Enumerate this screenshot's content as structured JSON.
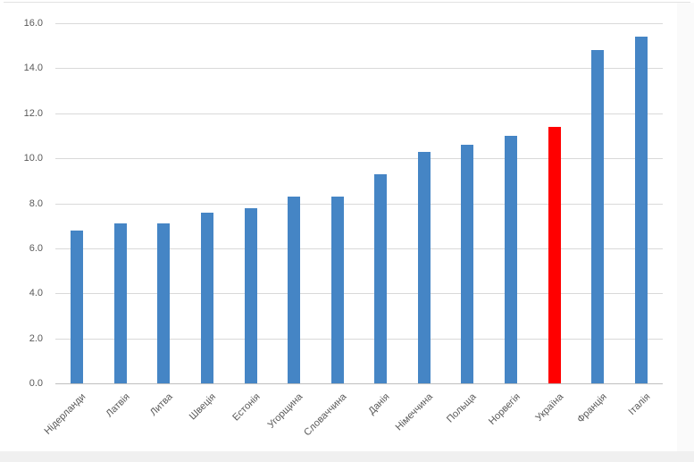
{
  "chart_data": {
    "type": "bar",
    "title": "",
    "xlabel": "",
    "ylabel": "",
    "categories": [
      "Нідерланди",
      "Латвія",
      "Литва",
      "Швеція",
      "Естонія",
      "Угорщина",
      "Словаччина",
      "Данія",
      "Німеччина",
      "Польща",
      "Норвегія",
      "Україна",
      "Франція",
      "Італія"
    ],
    "values": [
      6.8,
      7.1,
      7.1,
      7.6,
      7.8,
      8.3,
      8.3,
      9.3,
      10.3,
      10.6,
      11.0,
      11.4,
      14.8,
      15.4
    ],
    "highlight": {
      "category": "Україна",
      "value": 11.4,
      "color": "#ff0000"
    },
    "bar_color": "#4585c5",
    "ylim": [
      0,
      16
    ],
    "ytick_step": 2,
    "ytick_decimals": 1,
    "ytick_labels": [
      "0.0",
      "2.0",
      "4.0",
      "6.0",
      "8.0",
      "10.0",
      "12.0",
      "14.0",
      "16.0"
    ],
    "grid": true,
    "gridline_color": "#d9d9d9",
    "legend": false,
    "x_labels_rotation_deg": -45
  }
}
